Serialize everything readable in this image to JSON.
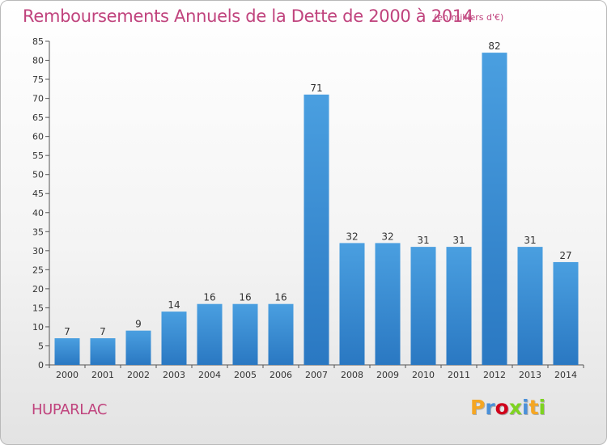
{
  "header": {
    "title": "Remboursements Annuels de la Dette de 2000 à 2014",
    "subtitle": "(en milliers d'€)"
  },
  "footer": {
    "commune": "HUPARLAC",
    "logo": {
      "text": "Proxiti",
      "colors": [
        "#f5a623",
        "#4a90d9",
        "#d0021b",
        "#7ed321",
        "#4a90d9",
        "#f5a623",
        "#7ed321"
      ]
    }
  },
  "chart_data": {
    "type": "bar",
    "categories": [
      "2000",
      "2001",
      "2002",
      "2003",
      "2004",
      "2005",
      "2006",
      "2007",
      "2008",
      "2009",
      "2010",
      "2011",
      "2012",
      "2013",
      "2014"
    ],
    "values": [
      7,
      7,
      9,
      14,
      16,
      16,
      16,
      71,
      32,
      32,
      31,
      31,
      82,
      31,
      27
    ],
    "title": "Remboursements Annuels de la Dette de 2000 à 2014",
    "xlabel": "",
    "ylabel": "",
    "ylim": [
      0,
      85
    ],
    "yticks": [
      0,
      5,
      10,
      15,
      20,
      25,
      30,
      35,
      40,
      45,
      50,
      55,
      60,
      65,
      70,
      75,
      80,
      85
    ],
    "grid": false,
    "bar_color": "#4a9fe0",
    "bar_color_dark": "#2a78c2"
  }
}
